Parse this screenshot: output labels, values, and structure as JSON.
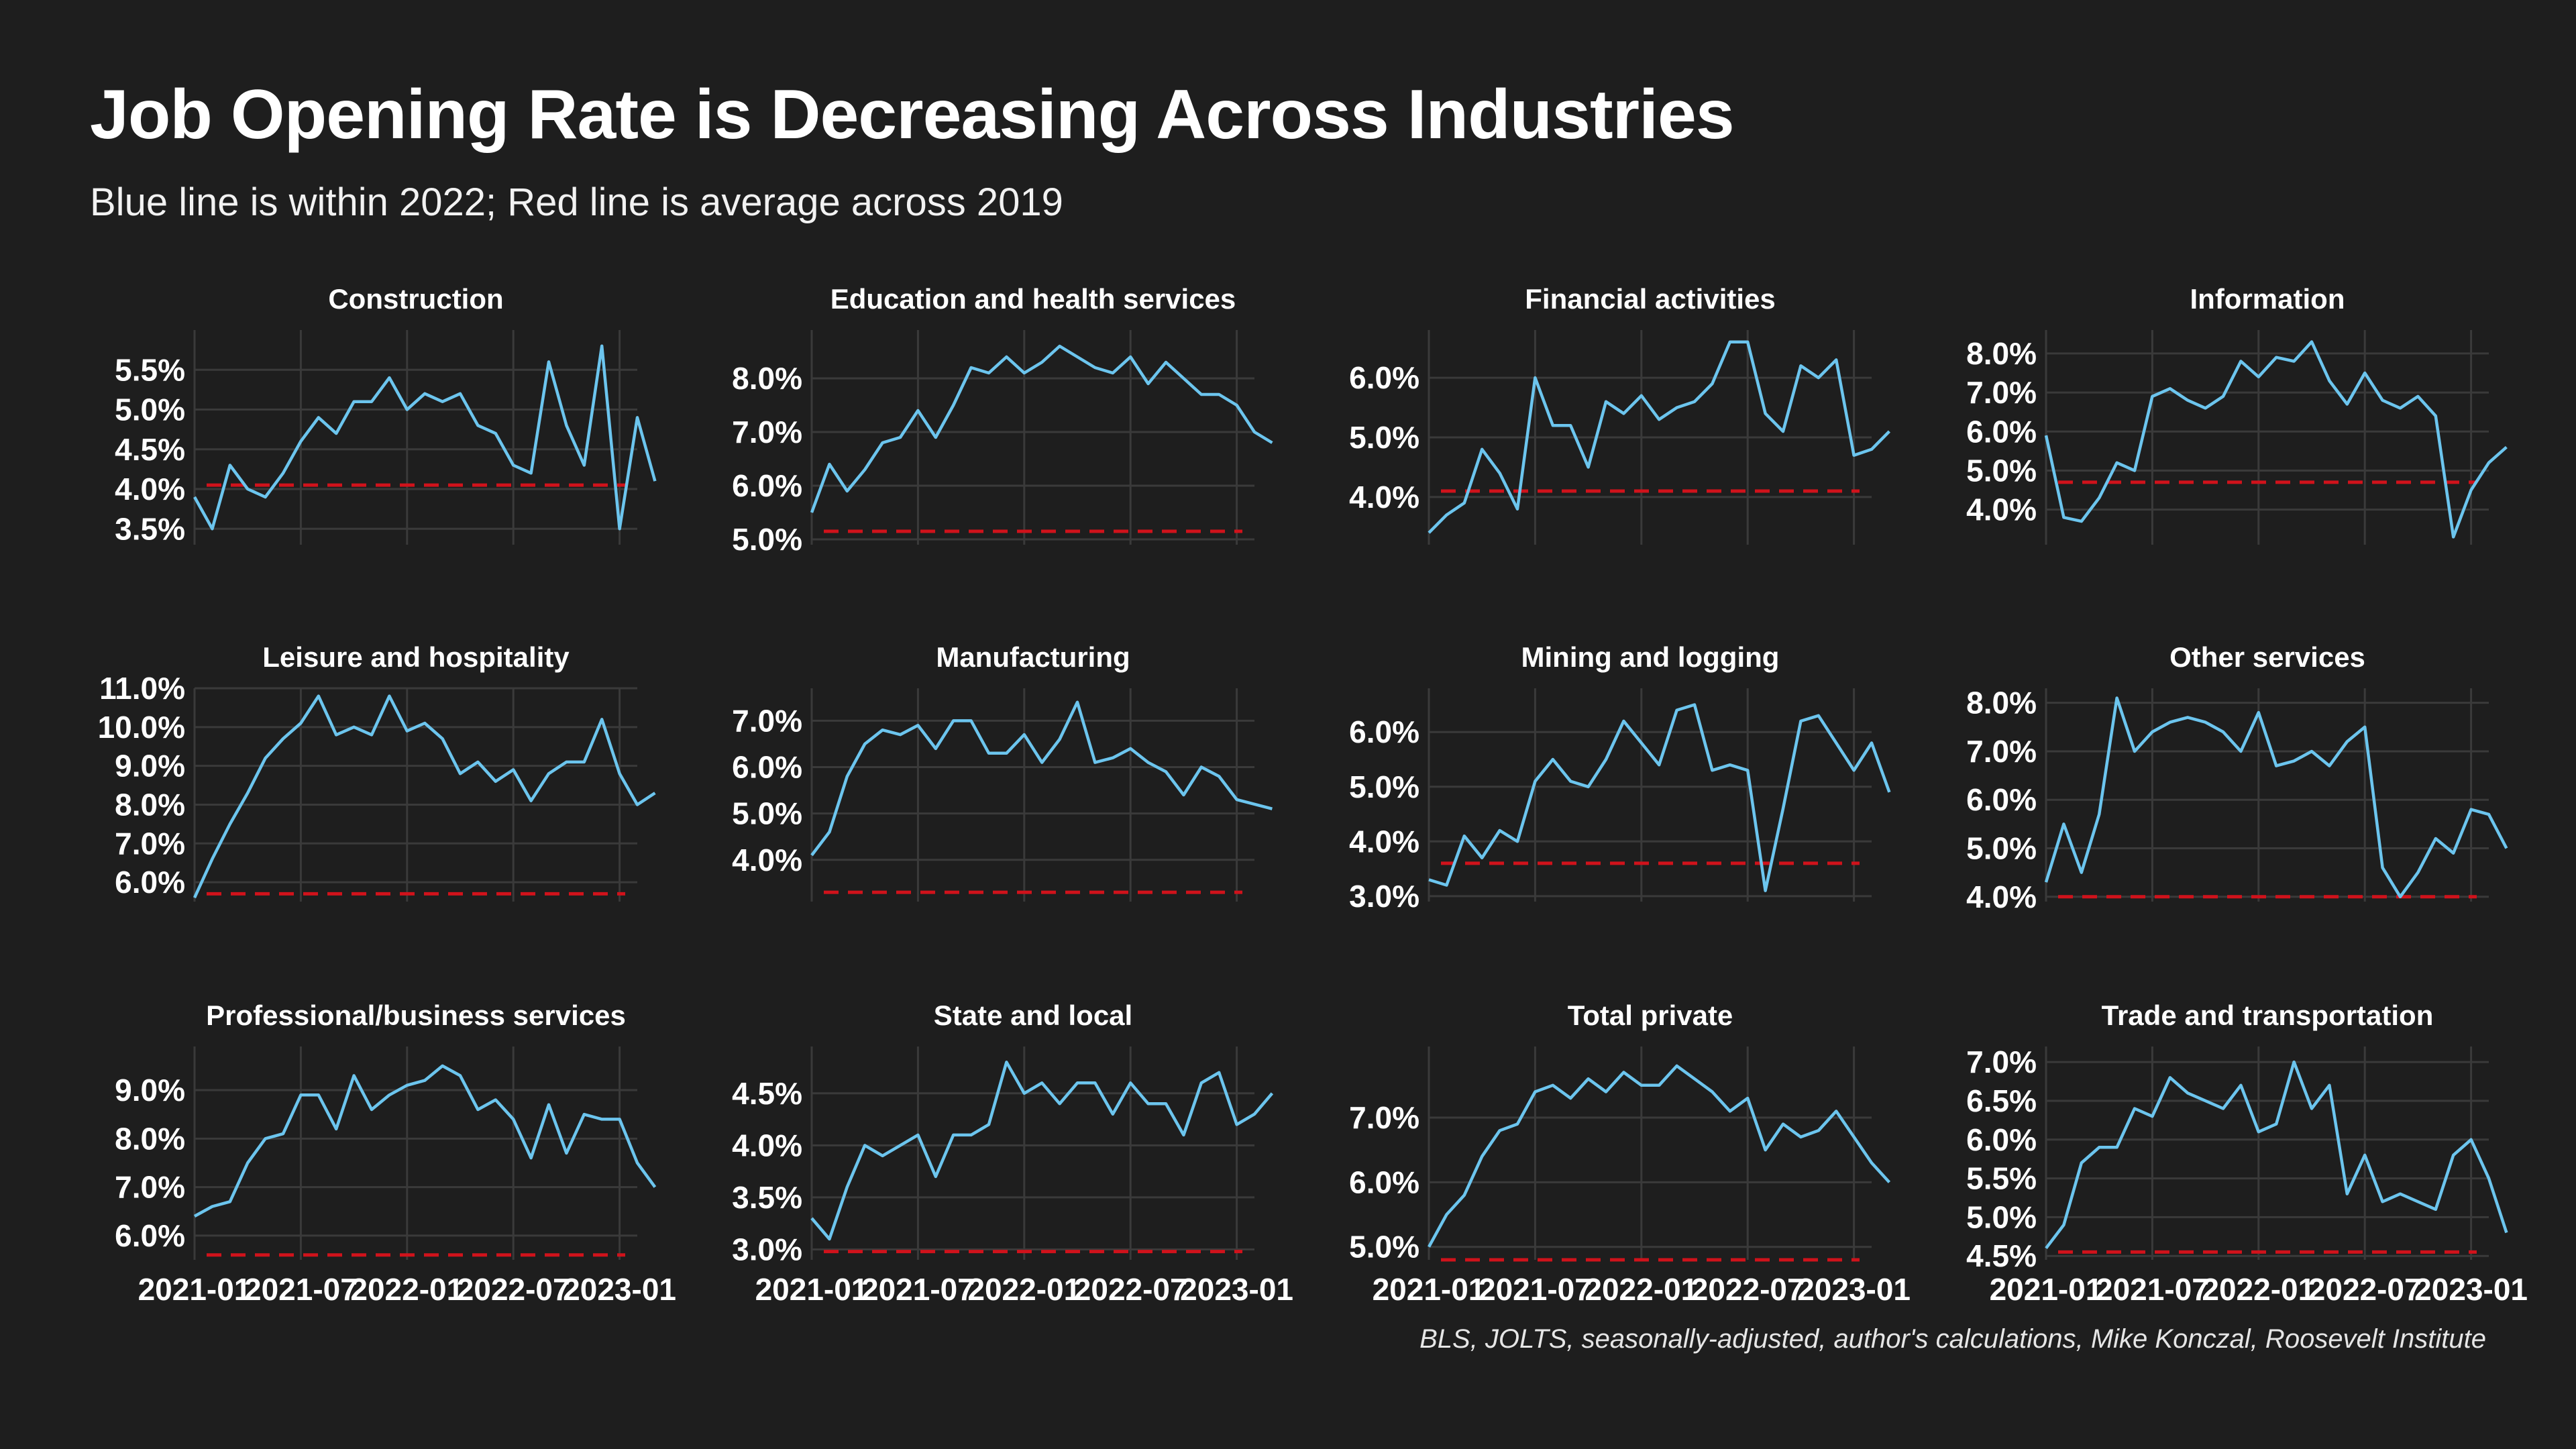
{
  "header": {
    "title": "Job Opening Rate is Decreasing Across Industries",
    "subtitle": "Blue line is within 2022; Red line is average across 2019"
  },
  "caption": "BLS, JOLTS, seasonally-adjusted, author's calculations, Mike Konczal, Roosevelt Institute",
  "colors": {
    "background": "#1e1e1e",
    "series_line": "#6cc5ee",
    "reference_line": "#d0121b",
    "grid": "#3a3a3a",
    "text": "#ffffff"
  },
  "x_tick_labels": [
    "2021-01",
    "2021-07",
    "2022-01",
    "2022-07",
    "2023-01"
  ],
  "chart_data": [
    {
      "type": "line",
      "title": "Construction",
      "x_start": "2021-01",
      "x_end": "2023-02",
      "ylim": [
        3.3,
        6.0
      ],
      "yticks": [
        3.5,
        4.0,
        4.5,
        5.0,
        5.5
      ],
      "ytick_labels": [
        "3.5%",
        "4.0%",
        "4.5%",
        "5.0%",
        "5.5%"
      ],
      "values": [
        3.9,
        3.5,
        4.3,
        4.0,
        3.9,
        4.2,
        4.6,
        4.9,
        4.7,
        5.1,
        5.1,
        5.4,
        5.0,
        5.2,
        5.1,
        5.2,
        4.8,
        4.7,
        4.3,
        4.2,
        5.6,
        4.8,
        4.3,
        5.8,
        3.5,
        4.9,
        4.1
      ],
      "reference": 4.05,
      "show_x_labels": false
    },
    {
      "type": "line",
      "title": "Education and health services",
      "x_start": "2021-01",
      "x_end": "2023-02",
      "ylim": [
        4.9,
        8.9
      ],
      "yticks": [
        5.0,
        6.0,
        7.0,
        8.0
      ],
      "ytick_labels": [
        "5.0%",
        "6.0%",
        "7.0%",
        "8.0%"
      ],
      "values": [
        5.5,
        6.4,
        5.9,
        6.3,
        6.8,
        6.9,
        7.4,
        6.9,
        7.5,
        8.2,
        8.1,
        8.4,
        8.1,
        8.3,
        8.6,
        8.4,
        8.2,
        8.1,
        8.4,
        7.9,
        8.3,
        8.0,
        7.7,
        7.7,
        7.5,
        7.0,
        6.8
      ],
      "reference": 5.15,
      "show_x_labels": false
    },
    {
      "type": "line",
      "title": "Financial activities",
      "x_start": "2021-01",
      "x_end": "2023-02",
      "ylim": [
        3.2,
        6.8
      ],
      "yticks": [
        4.0,
        5.0,
        6.0
      ],
      "ytick_labels": [
        "4.0%",
        "5.0%",
        "6.0%"
      ],
      "values": [
        3.4,
        3.7,
        3.9,
        4.8,
        4.4,
        3.8,
        6.0,
        5.2,
        5.2,
        4.5,
        5.6,
        5.4,
        5.7,
        5.3,
        5.5,
        5.6,
        5.9,
        6.6,
        6.6,
        5.4,
        5.1,
        6.2,
        6.0,
        6.3,
        4.7,
        4.8,
        5.1
      ],
      "reference": 4.1,
      "show_x_labels": false
    },
    {
      "type": "line",
      "title": "Information",
      "x_start": "2021-01",
      "x_end": "2023-02",
      "ylim": [
        3.1,
        8.6
      ],
      "yticks": [
        4.0,
        5.0,
        6.0,
        7.0,
        8.0
      ],
      "ytick_labels": [
        "4.0%",
        "5.0%",
        "6.0%",
        "7.0%",
        "8.0%"
      ],
      "values": [
        5.9,
        3.8,
        3.7,
        4.3,
        5.2,
        5.0,
        6.9,
        7.1,
        6.8,
        6.6,
        6.9,
        7.8,
        7.4,
        7.9,
        7.8,
        8.3,
        7.3,
        6.7,
        7.5,
        6.8,
        6.6,
        6.9,
        6.4,
        3.3,
        4.5,
        5.2,
        5.6
      ],
      "reference": 4.7,
      "show_x_labels": false
    },
    {
      "type": "line",
      "title": "Leisure and hospitality",
      "x_start": "2021-01",
      "x_end": "2023-02",
      "ylim": [
        5.5,
        11.0
      ],
      "yticks": [
        6.0,
        7.0,
        8.0,
        9.0,
        10.0,
        11.0
      ],
      "ytick_labels": [
        "6.0%",
        "7.0%",
        "8.0%",
        "9.0%",
        "10.0%",
        "11.0%"
      ],
      "values": [
        5.6,
        6.6,
        7.5,
        8.3,
        9.2,
        9.7,
        10.1,
        10.8,
        9.8,
        10.0,
        9.8,
        10.8,
        9.9,
        10.1,
        9.7,
        8.8,
        9.1,
        8.6,
        8.9,
        8.1,
        8.8,
        9.1,
        9.1,
        10.2,
        8.8,
        8.0,
        8.3
      ],
      "reference": 5.7,
      "show_x_labels": false
    },
    {
      "type": "line",
      "title": "Manufacturing",
      "x_start": "2021-01",
      "x_end": "2023-02",
      "ylim": [
        3.1,
        7.7
      ],
      "yticks": [
        4.0,
        5.0,
        6.0,
        7.0
      ],
      "ytick_labels": [
        "4.0%",
        "5.0%",
        "6.0%",
        "7.0%"
      ],
      "values": [
        4.1,
        4.6,
        5.8,
        6.5,
        6.8,
        6.7,
        6.9,
        6.4,
        7.0,
        7.0,
        6.3,
        6.3,
        6.7,
        6.1,
        6.6,
        7.4,
        6.1,
        6.2,
        6.4,
        6.1,
        5.9,
        5.4,
        6.0,
        5.8,
        5.3,
        5.2,
        5.1
      ],
      "reference": 3.3,
      "show_x_labels": false
    },
    {
      "type": "line",
      "title": "Mining and logging",
      "x_start": "2021-01",
      "x_end": "2023-02",
      "ylim": [
        2.9,
        6.8
      ],
      "yticks": [
        3.0,
        4.0,
        5.0,
        6.0
      ],
      "ytick_labels": [
        "3.0%",
        "4.0%",
        "5.0%",
        "6.0%"
      ],
      "values": [
        3.3,
        3.2,
        4.1,
        3.7,
        4.2,
        4.0,
        5.1,
        5.5,
        5.1,
        5.0,
        5.5,
        6.2,
        5.8,
        5.4,
        6.4,
        6.5,
        5.3,
        5.4,
        5.3,
        3.1,
        4.6,
        6.2,
        6.3,
        5.8,
        5.3,
        5.8,
        4.9
      ],
      "reference": 3.6,
      "show_x_labels": false
    },
    {
      "type": "line",
      "title": "Other services",
      "x_start": "2021-01",
      "x_end": "2023-02",
      "ylim": [
        3.9,
        8.3
      ],
      "yticks": [
        4.0,
        5.0,
        6.0,
        7.0,
        8.0
      ],
      "ytick_labels": [
        "4.0%",
        "5.0%",
        "6.0%",
        "7.0%",
        "8.0%"
      ],
      "values": [
        4.3,
        5.5,
        4.5,
        5.7,
        8.1,
        7.0,
        7.4,
        7.6,
        7.7,
        7.6,
        7.4,
        7.0,
        7.8,
        6.7,
        6.8,
        7.0,
        6.7,
        7.2,
        7.5,
        4.6,
        4.0,
        4.5,
        5.2,
        4.9,
        5.8,
        5.7,
        5.0
      ],
      "reference": 4.0,
      "show_x_labels": false
    },
    {
      "type": "line",
      "title": "Professional/business services",
      "x_start": "2021-01",
      "x_end": "2023-02",
      "ylim": [
        5.5,
        9.9
      ],
      "yticks": [
        6.0,
        7.0,
        8.0,
        9.0
      ],
      "ytick_labels": [
        "6.0%",
        "7.0%",
        "8.0%",
        "9.0%"
      ],
      "values": [
        6.4,
        6.6,
        6.7,
        7.5,
        8.0,
        8.1,
        8.9,
        8.9,
        8.2,
        9.3,
        8.6,
        8.9,
        9.1,
        9.2,
        9.5,
        9.3,
        8.6,
        8.8,
        8.4,
        7.6,
        8.7,
        7.7,
        8.5,
        8.4,
        8.4,
        7.5,
        7.0
      ],
      "reference": 5.6,
      "show_x_labels": true
    },
    {
      "type": "line",
      "title": "State and local",
      "x_start": "2021-01",
      "x_end": "2023-02",
      "ylim": [
        2.9,
        4.95
      ],
      "yticks": [
        3.0,
        3.5,
        4.0,
        4.5
      ],
      "ytick_labels": [
        "3.0%",
        "3.5%",
        "4.0%",
        "4.5%"
      ],
      "values": [
        3.3,
        3.1,
        3.6,
        4.0,
        3.9,
        4.0,
        4.1,
        3.7,
        4.1,
        4.1,
        4.2,
        4.8,
        4.5,
        4.6,
        4.4,
        4.6,
        4.6,
        4.3,
        4.6,
        4.4,
        4.4,
        4.1,
        4.6,
        4.7,
        4.2,
        4.3,
        4.5
      ],
      "reference": 2.98,
      "show_x_labels": true
    },
    {
      "type": "line",
      "title": "Total private",
      "x_start": "2021-01",
      "x_end": "2023-02",
      "ylim": [
        4.8,
        8.1
      ],
      "yticks": [
        5.0,
        6.0,
        7.0
      ],
      "ytick_labels": [
        "5.0%",
        "6.0%",
        "7.0%"
      ],
      "values": [
        5.0,
        5.5,
        5.8,
        6.4,
        6.8,
        6.9,
        7.4,
        7.5,
        7.3,
        7.6,
        7.4,
        7.7,
        7.5,
        7.5,
        7.8,
        7.6,
        7.4,
        7.1,
        7.3,
        6.5,
        6.9,
        6.7,
        6.8,
        7.1,
        6.7,
        6.3,
        6.0
      ],
      "reference": 4.8,
      "show_x_labels": true
    },
    {
      "type": "line",
      "title": "Trade and transportation",
      "x_start": "2021-01",
      "x_end": "2023-02",
      "ylim": [
        4.45,
        7.2
      ],
      "yticks": [
        4.5,
        5.0,
        5.5,
        6.0,
        6.5,
        7.0
      ],
      "ytick_labels": [
        "4.5%",
        "5.0%",
        "5.5%",
        "6.0%",
        "6.5%",
        "7.0%"
      ],
      "values": [
        4.6,
        4.9,
        5.7,
        5.9,
        5.9,
        6.4,
        6.3,
        6.8,
        6.6,
        6.5,
        6.4,
        6.7,
        6.1,
        6.2,
        7.0,
        6.4,
        6.7,
        5.3,
        5.8,
        5.2,
        5.3,
        5.2,
        5.1,
        5.8,
        6.0,
        5.5,
        4.8
      ],
      "reference": 4.55,
      "show_x_labels": true
    }
  ]
}
